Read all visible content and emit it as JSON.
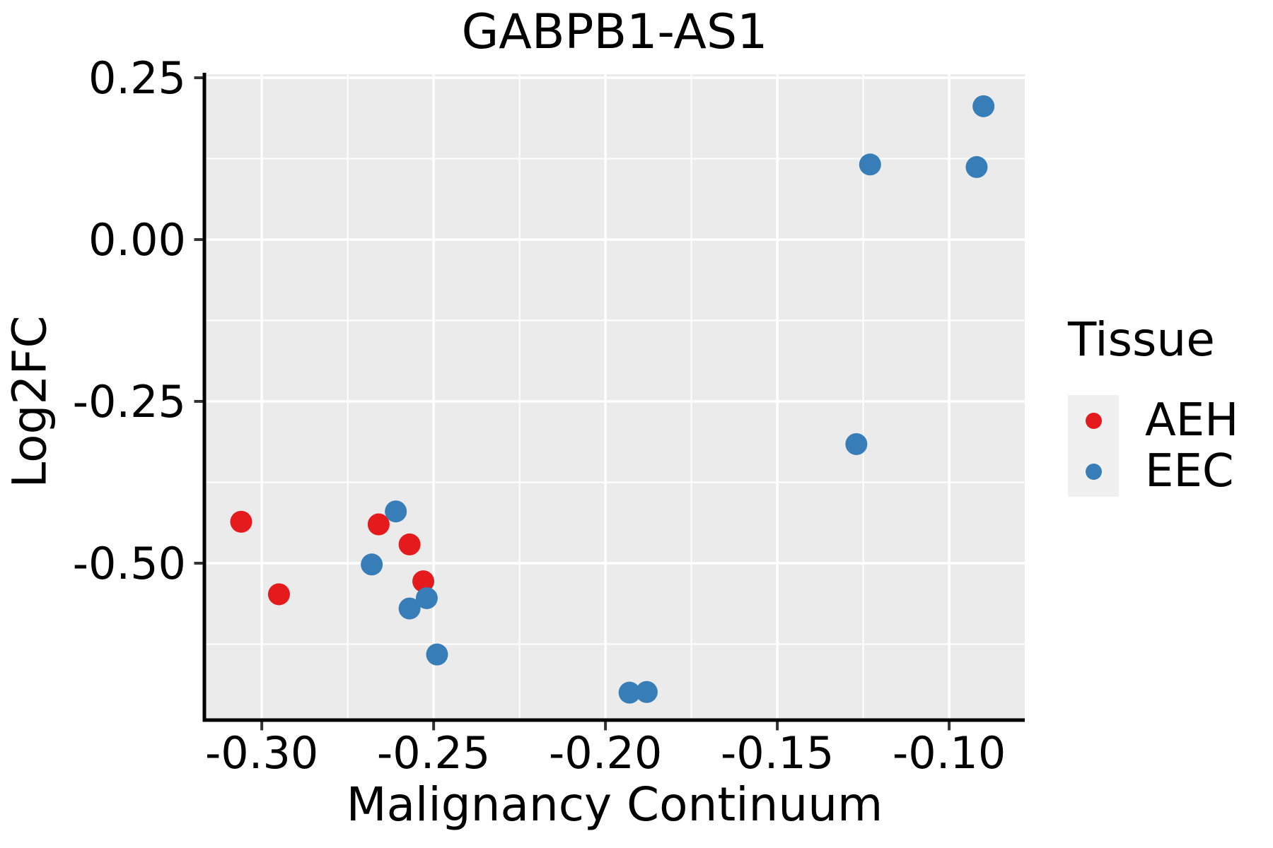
{
  "chart_data": {
    "type": "scatter",
    "title": "GABPB1-AS1",
    "xlabel": "Malignancy Continuum",
    "ylabel": "Log2FC",
    "xlim": [
      -0.3167,
      -0.078
    ],
    "ylim": [
      -0.7424,
      0.2555
    ],
    "x_ticks": {
      "values": [
        -0.3,
        -0.25,
        -0.2,
        -0.15,
        -0.1
      ],
      "labels": [
        "-0.30",
        "-0.25",
        "-0.20",
        "-0.15",
        "-0.10"
      ]
    },
    "y_ticks": {
      "values": [
        0.25,
        0.0,
        -0.25,
        -0.5
      ],
      "labels": [
        "0.25",
        "0.00",
        "-0.25",
        "-0.50"
      ]
    },
    "x_minor_ticks": [
      -0.275,
      -0.225,
      -0.175,
      -0.125
    ],
    "y_minor_ticks": [
      0.125,
      -0.125,
      -0.375,
      -0.625
    ],
    "grid": "on",
    "panel_background": "#ebebeb",
    "grid_color": "#ffffff",
    "axis_line_color": "#000000",
    "tick_color": "#333333",
    "legend": {
      "title": "Tissue",
      "position": "right"
    },
    "series": [
      {
        "name": "AEH",
        "color": "#e41a1c",
        "points": [
          [
            -0.306,
            -0.436
          ],
          [
            -0.295,
            -0.548
          ],
          [
            -0.266,
            -0.44
          ],
          [
            -0.257,
            -0.471
          ],
          [
            -0.253,
            -0.528
          ]
        ]
      },
      {
        "name": "EEC",
        "color": "#377eb8",
        "points": [
          [
            -0.268,
            -0.502
          ],
          [
            -0.261,
            -0.42
          ],
          [
            -0.257,
            -0.57
          ],
          [
            -0.252,
            -0.554
          ],
          [
            -0.249,
            -0.641
          ],
          [
            -0.193,
            -0.7
          ],
          [
            -0.188,
            -0.699
          ],
          [
            -0.127,
            -0.316
          ],
          [
            -0.123,
            0.116
          ],
          [
            -0.092,
            0.112
          ],
          [
            -0.09,
            0.206
          ]
        ]
      }
    ]
  }
}
